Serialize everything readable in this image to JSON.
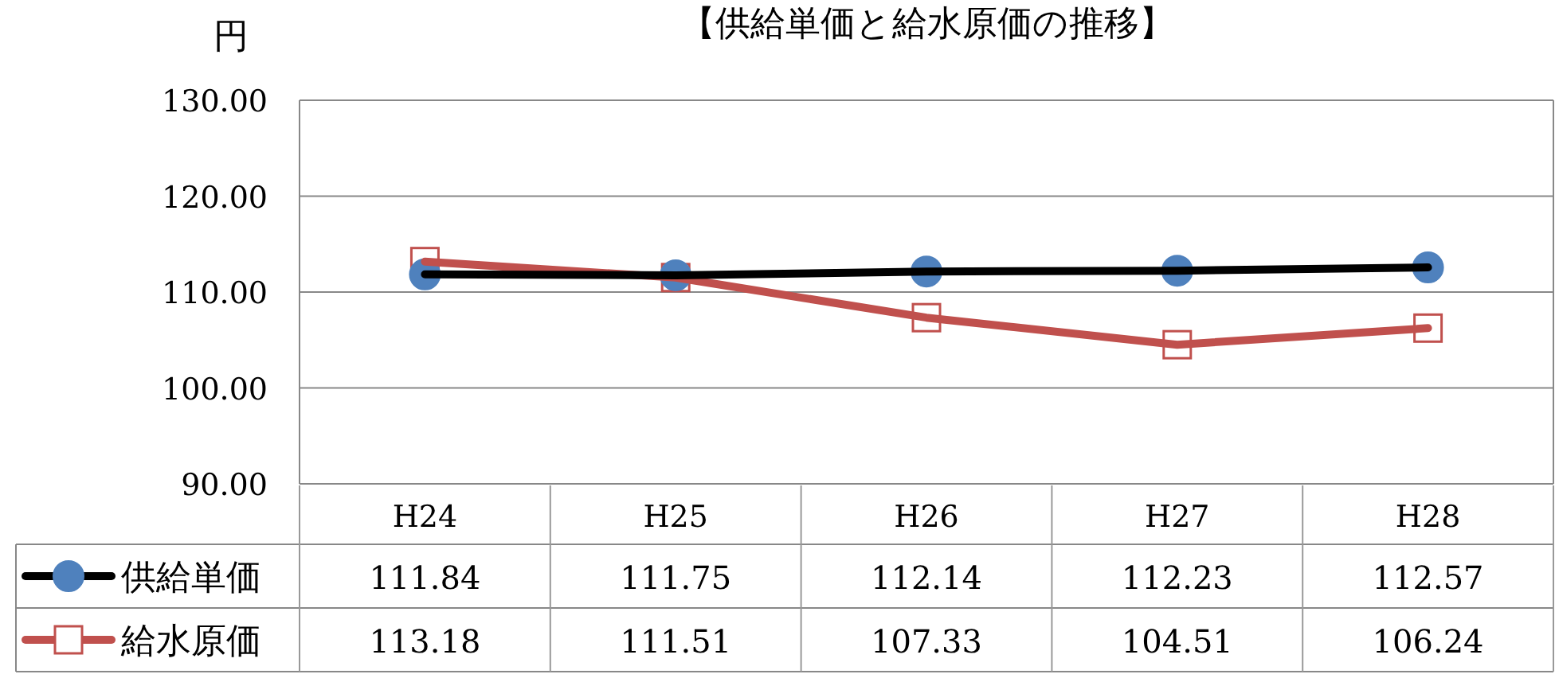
{
  "chart_data": {
    "type": "line",
    "title": "【供給単価と給水原価の推移】",
    "ylabel": "円",
    "categories": [
      "H24",
      "H25",
      "H26",
      "H27",
      "H28"
    ],
    "series": [
      {
        "name": "供給単価",
        "color": "#000000",
        "marker": "circle",
        "values": [
          111.84,
          111.75,
          112.14,
          112.23,
          112.57
        ]
      },
      {
        "name": "給水原価",
        "color": "#c0504d",
        "marker": "square",
        "values": [
          113.18,
          111.51,
          107.33,
          104.51,
          106.24
        ]
      }
    ],
    "ylim": [
      90,
      130
    ],
    "yticks": [
      {
        "value": 90,
        "label": "90.00"
      },
      {
        "value": 100,
        "label": "100.00"
      },
      {
        "value": 110,
        "label": "110.00"
      },
      {
        "value": 120,
        "label": "120.00"
      },
      {
        "value": 130,
        "label": "130.00"
      }
    ],
    "grid": "y",
    "legend": "bottom",
    "data_labels": true,
    "line_style": "solid"
  }
}
